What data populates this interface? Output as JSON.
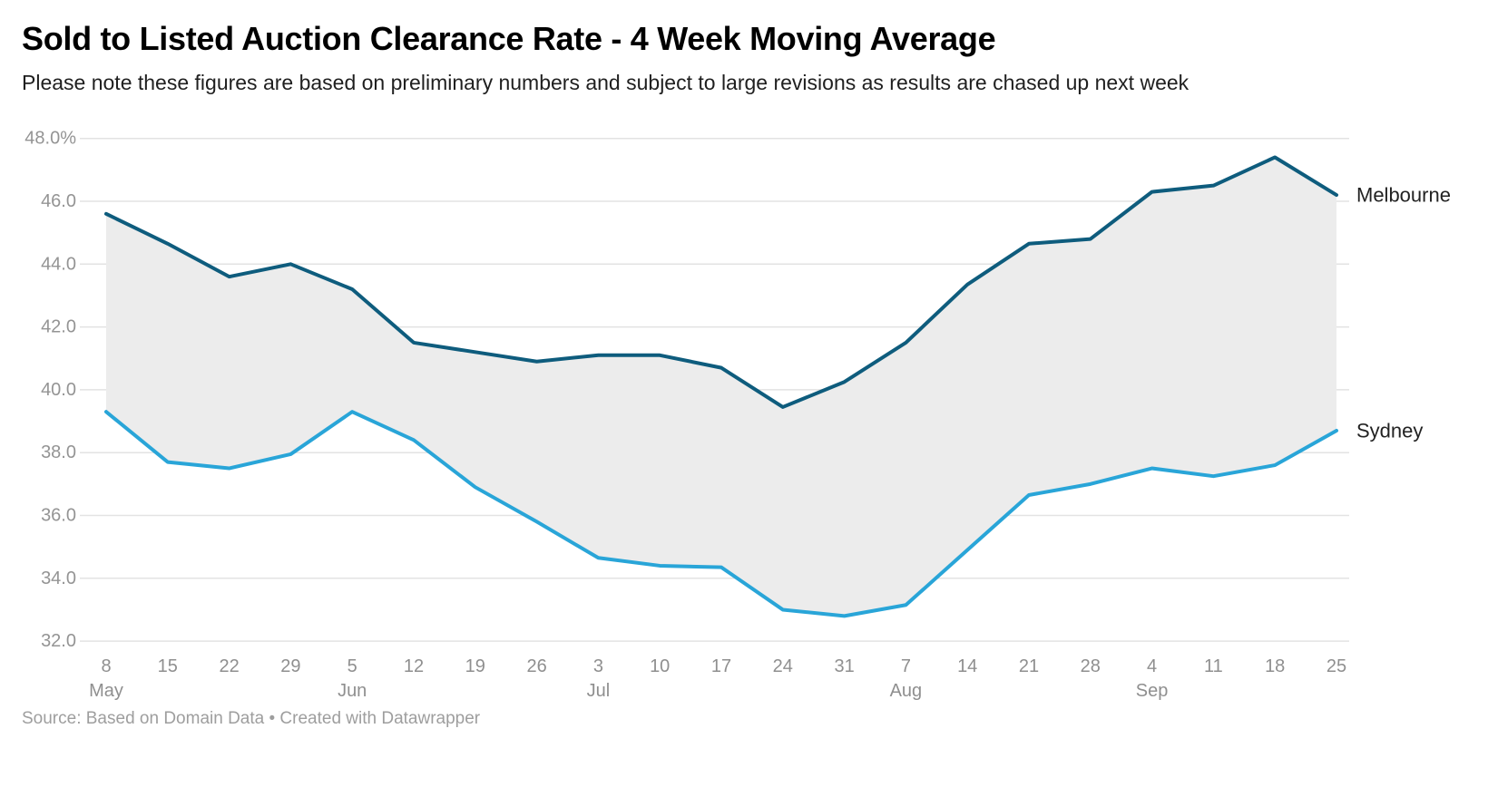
{
  "header": {
    "title": "Sold to Listed Auction Clearance Rate - 4 Week Moving Average",
    "subtitle": "Please note these figures are based on preliminary numbers and subject to large revisions as results are chased up next week"
  },
  "footer": {
    "source_text": "Source: Based on Domain Data • Created with Datawrapper"
  },
  "series_labels": {
    "melbourne": "Melbourne",
    "sydney": "Sydney"
  },
  "colors": {
    "melbourne_line": "#0e5c7d",
    "sydney_line": "#29a5d8",
    "between_area_fill": "#ececec",
    "gridline": "#e3e3e3",
    "axis_text": "#8f8f8f",
    "series_label_text": "#222222"
  },
  "chart_data": {
    "type": "line",
    "title": "Sold to Listed Auction Clearance Rate - 4 Week Moving Average",
    "subtitle": "Please note these figures are based on preliminary numbers and subject to large revisions as results are chased up next week",
    "ylabel": "",
    "xlabel": "",
    "ylim": [
      32.0,
      48.0
    ],
    "grid": "horizontal",
    "legend_position": "right-edge-direct-labels",
    "area_fill_between_series": true,
    "y_ticks": [
      {
        "value": 48,
        "label": "48.0%"
      },
      {
        "value": 46,
        "label": "46.0"
      },
      {
        "value": 44,
        "label": "44.0"
      },
      {
        "value": 42,
        "label": "42.0"
      },
      {
        "value": 40,
        "label": "40.0"
      },
      {
        "value": 38,
        "label": "38.0"
      },
      {
        "value": 36,
        "label": "36.0"
      },
      {
        "value": 34,
        "label": "34.0"
      },
      {
        "value": 32,
        "label": "32.0"
      }
    ],
    "categories": [
      "May 8",
      "May 15",
      "May 22",
      "May 29",
      "Jun 5",
      "Jun 12",
      "Jun 19",
      "Jun 26",
      "Jul 3",
      "Jul 10",
      "Jul 17",
      "Jul 24",
      "Jul 31",
      "Aug 7",
      "Aug 14",
      "Aug 21",
      "Aug 28",
      "Sep 4",
      "Sep 11",
      "Sep 18",
      "Sep 25"
    ],
    "x_tick_labels": [
      "8",
      "15",
      "22",
      "29",
      "5",
      "12",
      "19",
      "26",
      "3",
      "10",
      "17",
      "24",
      "31",
      "7",
      "14",
      "21",
      "28",
      "4",
      "11",
      "18",
      "25"
    ],
    "month_labels": [
      {
        "index": 0,
        "label": "May"
      },
      {
        "index": 4,
        "label": "Jun"
      },
      {
        "index": 8,
        "label": "Jul"
      },
      {
        "index": 13,
        "label": "Aug"
      },
      {
        "index": 17,
        "label": "Sep"
      }
    ],
    "series": [
      {
        "name": "Melbourne",
        "color": "#0e5c7d",
        "values": [
          45.6,
          44.65,
          43.6,
          44.0,
          43.2,
          41.5,
          41.2,
          40.9,
          41.1,
          41.1,
          40.7,
          39.45,
          40.25,
          41.5,
          43.35,
          44.65,
          44.8,
          46.3,
          46.5,
          47.4,
          46.2
        ]
      },
      {
        "name": "Sydney",
        "color": "#29a5d8",
        "values": [
          39.3,
          37.7,
          37.5,
          37.95,
          39.3,
          38.4,
          36.9,
          35.8,
          34.65,
          34.4,
          34.35,
          33.0,
          32.8,
          33.15,
          34.9,
          36.65,
          37.0,
          37.5,
          37.25,
          37.6,
          38.7
        ]
      }
    ]
  }
}
